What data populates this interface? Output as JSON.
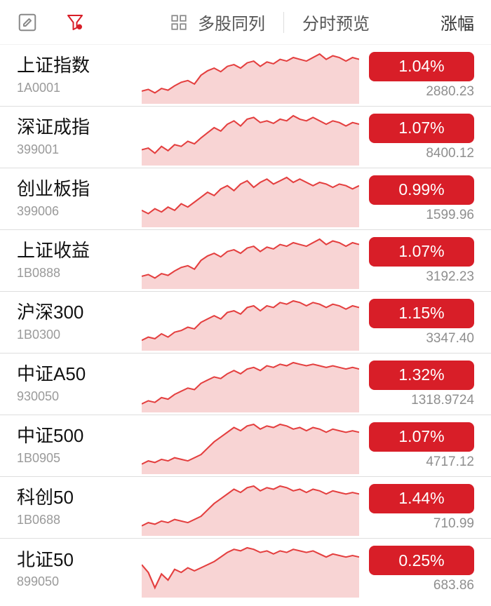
{
  "toolbar": {
    "multi_view_label": "多股同列",
    "minute_preview_label": "分时预览",
    "sort_label": "涨幅"
  },
  "chart_style": {
    "line_color": "#e43f3f",
    "fill_color": "#f8d4d4",
    "line_width": 2
  },
  "badge_style": {
    "bg_color": "#d81e28",
    "text_color": "#ffffff",
    "border_radius": 8
  },
  "indices": [
    {
      "name": "上证指数",
      "code": "1A0001",
      "change": "1.04%",
      "price": "2880.23",
      "spark": [
        12,
        14,
        10,
        15,
        13,
        18,
        22,
        24,
        20,
        30,
        35,
        38,
        34,
        40,
        42,
        38,
        44,
        46,
        40,
        45,
        43,
        48,
        46,
        50,
        48,
        46,
        50,
        54,
        48,
        52,
        50,
        46,
        50,
        48
      ]
    },
    {
      "name": "深证成指",
      "code": "399001",
      "change": "1.07%",
      "price": "8400.12",
      "spark": [
        16,
        18,
        12,
        20,
        15,
        22,
        20,
        26,
        23,
        30,
        36,
        42,
        38,
        46,
        50,
        44,
        52,
        54,
        48,
        50,
        47,
        52,
        50,
        56,
        52,
        50,
        54,
        50,
        46,
        50,
        48,
        44,
        48,
        46
      ]
    },
    {
      "name": "创业板指",
      "code": "399006",
      "change": "0.99%",
      "price": "1599.96",
      "spark": [
        18,
        14,
        20,
        16,
        22,
        18,
        26,
        22,
        28,
        34,
        40,
        36,
        44,
        48,
        42,
        50,
        54,
        46,
        52,
        56,
        50,
        54,
        58,
        52,
        56,
        52,
        48,
        52,
        50,
        46,
        50,
        48,
        44,
        48
      ]
    },
    {
      "name": "上证收益",
      "code": "1B0888",
      "change": "1.07%",
      "price": "3192.23",
      "spark": [
        12,
        14,
        10,
        15,
        13,
        18,
        22,
        24,
        20,
        30,
        35,
        38,
        34,
        40,
        42,
        38,
        44,
        46,
        40,
        45,
        43,
        48,
        46,
        50,
        48,
        46,
        50,
        54,
        48,
        52,
        50,
        46,
        50,
        48
      ]
    },
    {
      "name": "沪深300",
      "code": "1B0300",
      "change": "1.15%",
      "price": "3347.40",
      "spark": [
        10,
        14,
        12,
        18,
        14,
        20,
        22,
        26,
        24,
        32,
        36,
        40,
        36,
        44,
        46,
        42,
        50,
        52,
        46,
        52,
        50,
        56,
        54,
        58,
        56,
        52,
        56,
        54,
        50,
        54,
        52,
        48,
        52,
        50
      ]
    },
    {
      "name": "中证A50",
      "code": "930050",
      "change": "1.32%",
      "price": "1318.9724",
      "spark": [
        8,
        12,
        10,
        16,
        14,
        20,
        24,
        28,
        26,
        34,
        38,
        42,
        40,
        46,
        50,
        46,
        52,
        54,
        50,
        56,
        54,
        58,
        56,
        60,
        58,
        56,
        58,
        56,
        54,
        56,
        54,
        52,
        54,
        52
      ]
    },
    {
      "name": "中证500",
      "code": "1B0905",
      "change": "1.07%",
      "price": "4717.12",
      "spark": [
        10,
        14,
        12,
        16,
        14,
        18,
        16,
        14,
        18,
        22,
        30,
        38,
        44,
        50,
        56,
        52,
        58,
        60,
        54,
        58,
        56,
        60,
        58,
        54,
        56,
        52,
        56,
        54,
        50,
        54,
        52,
        50,
        52,
        50
      ]
    },
    {
      "name": "科创50",
      "code": "1B0688",
      "change": "1.44%",
      "price": "710.99",
      "spark": [
        10,
        14,
        12,
        16,
        14,
        18,
        16,
        14,
        18,
        22,
        30,
        38,
        44,
        50,
        56,
        52,
        58,
        60,
        54,
        58,
        56,
        60,
        58,
        54,
        56,
        52,
        56,
        54,
        50,
        54,
        52,
        50,
        52,
        50
      ]
    },
    {
      "name": "北证50",
      "code": "899050",
      "change": "0.25%",
      "price": "683.86",
      "spark": [
        40,
        30,
        10,
        28,
        20,
        34,
        30,
        36,
        32,
        36,
        40,
        44,
        50,
        56,
        60,
        58,
        62,
        60,
        56,
        58,
        54,
        58,
        56,
        60,
        58,
        56,
        58,
        54,
        50,
        54,
        52,
        50,
        52,
        50
      ]
    }
  ]
}
